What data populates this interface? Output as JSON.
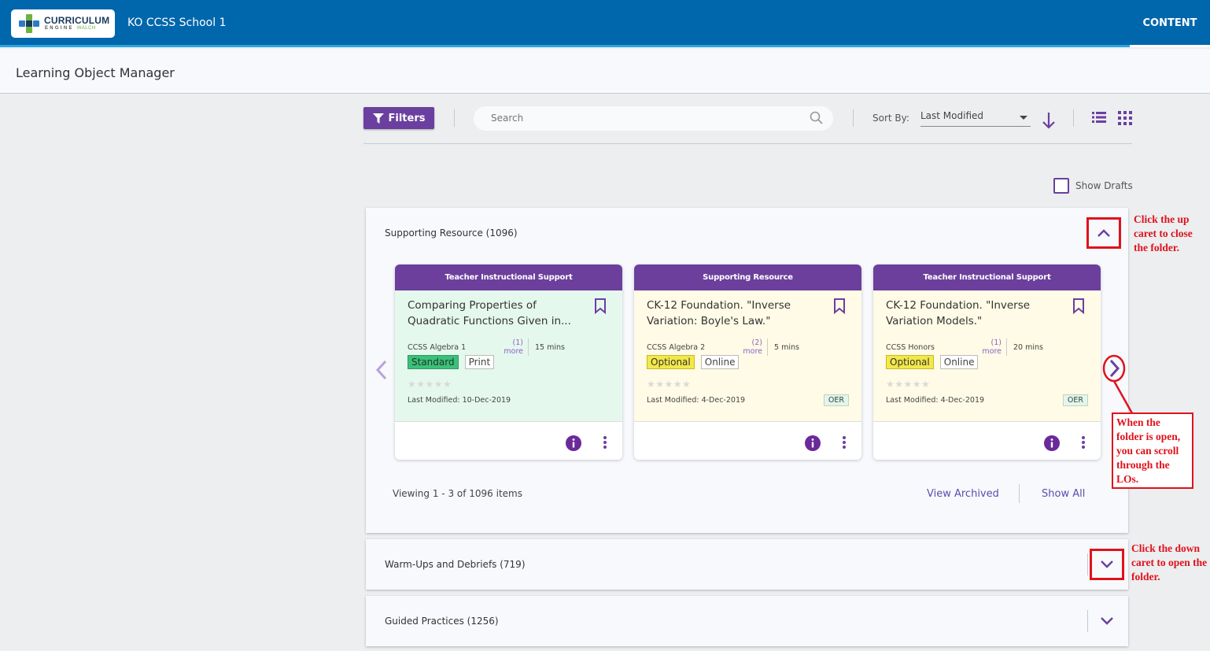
{
  "header": {
    "logo_title": "CURRICULUM",
    "logo_sub": "ENGINE",
    "logo_sub_brand": "WALCH",
    "school": "KO CCSS School 1",
    "nav_content": "CONTENT"
  },
  "page_title": "Learning Object Manager",
  "toolbar": {
    "filters_label": "Filters",
    "search_placeholder": "Search",
    "sort_by_label": "Sort By:",
    "sort_value": "Last Modified"
  },
  "show_drafts_label": "Show Drafts",
  "folders": [
    {
      "title": "Supporting Resource (1096)"
    },
    {
      "title": "Warm-Ups and Debriefs (719)"
    },
    {
      "title": "Guided Practices (1256)"
    }
  ],
  "cards": [
    {
      "category": "Teacher Instructional Support",
      "title": "Comparing Properties of Quadratic Functions Given in...",
      "course": "CCSS Algebra 1",
      "more": "(1) more",
      "duration": "15 mins",
      "tags": [
        "Standard",
        "Print"
      ],
      "stars": "★★★★★",
      "modified": "Last Modified: 10-Dec-2019",
      "oer": ""
    },
    {
      "category": "Supporting Resource",
      "title": "CK-12 Foundation. \"Inverse Variation: Boyle's Law.\"",
      "course": "CCSS Algebra 2",
      "more": "(2) more",
      "duration": "5 mins",
      "tags": [
        "Optional",
        "Online"
      ],
      "stars": "★★★★★",
      "modified": "Last Modified: 4-Dec-2019",
      "oer": "OER"
    },
    {
      "category": "Teacher Instructional Support",
      "title": "CK-12 Foundation. \"Inverse Variation Models.\"",
      "course": "CCSS Honors",
      "more": "(1) more",
      "duration": "20 mins",
      "tags": [
        "Optional",
        "Online"
      ],
      "stars": "★★★★★",
      "modified": "Last Modified: 4-Dec-2019",
      "oer": "OER"
    }
  ],
  "pager": {
    "viewing": "Viewing 1 - 3 of 1096 items",
    "view_archived": "View Archived",
    "show_all": "Show All"
  },
  "annotations": {
    "close_folder": "Click the up caret to close the folder.",
    "scroll": "When the folder is open, you can scroll through the LOs.",
    "open_folder": "Click the down caret to open the folder."
  },
  "colors": {
    "topbar": "#0067ac",
    "accent_purple": "#6b3fa0",
    "annotation_red": "#e0121b",
    "tag_standard": "#3cc07a",
    "tag_optional": "#f2e84a"
  },
  "icons": [
    "filter-icon",
    "search-icon",
    "sort-direction-icon",
    "list-view-icon",
    "grid-view-icon",
    "chevron-up-icon",
    "chevron-down-icon",
    "chevron-left-icon",
    "chevron-right-icon",
    "bookmark-icon",
    "info-icon",
    "kebab-icon"
  ]
}
